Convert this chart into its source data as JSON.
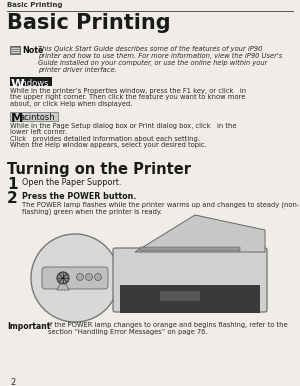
{
  "bg_color": "#f0ede8",
  "header_line_color": "#555555",
  "header_text": "Basic Printing",
  "title_text": "Basic Printing",
  "note_label": "Note",
  "note_body_lines": [
    "This Quick Start Guide describes some of the features of your iP90",
    "printer and how to use them. For more information, view the iP90 User's",
    "Guide installed on your computer, or use the online help within your",
    "printer driver interface."
  ],
  "windows_label_W": "W",
  "windows_label_rest": "indows",
  "windows_body_lines": [
    "While in the printer’s Properties window, press the F1 key, or click   in",
    "the upper right corner. Then click the feature you want to know more",
    "about, or click Help when displayed."
  ],
  "mac_label_M": "M",
  "mac_label_rest": "acintosh",
  "mac_body_lines": [
    "While in the Page Setup dialog box or Print dialog box, click   in the",
    "lower left corner.",
    "Click   provides detailed information about each setting.",
    "When the Help window appears, select your desired topic."
  ],
  "section_title": "Turning on the Printer",
  "step1_num": "1",
  "step1_text": "Open the Paper Support.",
  "step2_num": "2",
  "step2_text": "Press the POWER button.",
  "step2_body_lines": [
    "The POWER lamp flashes while the printer warms up and changes to steady (non-",
    "flashing) green when the printer is ready."
  ],
  "important_label": "Important",
  "important_body_lines": [
    "If the POWER lamp changes to orange and begins flashing, refer to the",
    "section “Handling Error Messages” on page 76."
  ],
  "page_num": "2",
  "text_color": "#1a1a1a",
  "body_color": "#2a2a2a",
  "win_bg": "#555555",
  "win_fg": "#ffffff",
  "mac_bg": "#cccccc",
  "mac_fg": "#111111",
  "mac_border": "#888888"
}
